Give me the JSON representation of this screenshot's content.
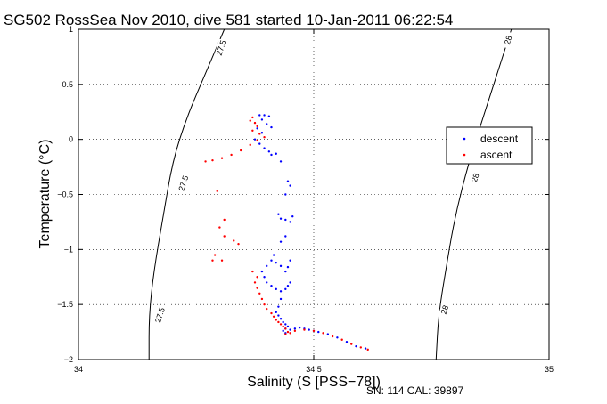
{
  "chart_data": {
    "type": "scatter",
    "title": "SG502 RossSea Nov 2010, dive 581 started 10-Jan-2011 06:22:54",
    "xlabel": "Salinity (S [PSS−78])",
    "ylabel": "Temperature (°C)",
    "xlim": [
      34,
      35
    ],
    "ylim": [
      -2,
      1
    ],
    "x_ticks": [
      34,
      34.5,
      35
    ],
    "x_tick_labels": [
      "34",
      "34.5",
      "35"
    ],
    "y_ticks": [
      1,
      0.5,
      0,
      -0.5,
      -1,
      -1.5,
      -2
    ],
    "y_tick_labels": [
      "1",
      "0.5",
      "0",
      "−0.5",
      "−1",
      "−1.5",
      "−2"
    ],
    "grid": true,
    "legend_position": "right",
    "series": [
      {
        "name": "descent",
        "color": "#0000ff",
        "marker": "dot",
        "points": [
          [
            34.385,
            0.22
          ],
          [
            34.395,
            0.22
          ],
          [
            34.405,
            0.21
          ],
          [
            34.39,
            0.18
          ],
          [
            34.4,
            0.14
          ],
          [
            34.41,
            0.11
          ],
          [
            34.38,
            0.1
          ],
          [
            34.39,
            0.06
          ],
          [
            34.375,
            0.0
          ],
          [
            34.385,
            -0.04
          ],
          [
            34.395,
            -0.08
          ],
          [
            34.405,
            -0.11
          ],
          [
            34.41,
            -0.14
          ],
          [
            34.42,
            -0.13
          ],
          [
            34.43,
            -0.2
          ],
          [
            34.445,
            -0.38
          ],
          [
            34.45,
            -0.42
          ],
          [
            34.44,
            -0.5
          ],
          [
            34.425,
            -0.68
          ],
          [
            34.43,
            -0.72
          ],
          [
            34.44,
            -0.73
          ],
          [
            34.45,
            -0.75
          ],
          [
            34.455,
            -0.7
          ],
          [
            34.44,
            -0.88
          ],
          [
            34.43,
            -0.93
          ],
          [
            34.415,
            -1.05
          ],
          [
            34.41,
            -1.1
          ],
          [
            34.4,
            -1.15
          ],
          [
            34.39,
            -1.2
          ],
          [
            34.395,
            -1.25
          ],
          [
            34.4,
            -1.3
          ],
          [
            34.41,
            -1.33
          ],
          [
            34.42,
            -1.36
          ],
          [
            34.43,
            -1.38
          ],
          [
            34.44,
            -1.36
          ],
          [
            34.445,
            -1.33
          ],
          [
            34.45,
            -1.3
          ],
          [
            34.44,
            -1.2
          ],
          [
            34.43,
            -1.15
          ],
          [
            34.42,
            -1.12
          ],
          [
            34.45,
            -1.1
          ],
          [
            34.445,
            -1.16
          ],
          [
            34.43,
            -1.45
          ],
          [
            34.425,
            -1.52
          ],
          [
            34.42,
            -1.57
          ],
          [
            34.425,
            -1.6
          ],
          [
            34.43,
            -1.63
          ],
          [
            34.435,
            -1.66
          ],
          [
            34.44,
            -1.68
          ],
          [
            34.445,
            -1.7
          ],
          [
            34.44,
            -1.72
          ],
          [
            34.435,
            -1.74
          ],
          [
            34.44,
            -1.76
          ],
          [
            34.45,
            -1.73
          ],
          [
            34.46,
            -1.72
          ],
          [
            34.47,
            -1.71
          ],
          [
            34.48,
            -1.72
          ],
          [
            34.49,
            -1.73
          ],
          [
            34.5,
            -1.74
          ],
          [
            34.51,
            -1.75
          ],
          [
            34.53,
            -1.77
          ],
          [
            34.55,
            -1.8
          ],
          [
            34.57,
            -1.84
          ],
          [
            34.59,
            -1.88
          ],
          [
            34.61,
            -1.9
          ]
        ]
      },
      {
        "name": "ascent",
        "color": "#ff0000",
        "marker": "dot",
        "points": [
          [
            34.37,
            0.2
          ],
          [
            34.365,
            0.17
          ],
          [
            34.375,
            0.15
          ],
          [
            34.38,
            0.12
          ],
          [
            34.37,
            0.08
          ],
          [
            34.385,
            0.05
          ],
          [
            34.395,
            0.02
          ],
          [
            34.38,
            -0.01
          ],
          [
            34.365,
            -0.05
          ],
          [
            34.345,
            -0.1
          ],
          [
            34.325,
            -0.14
          ],
          [
            34.305,
            -0.17
          ],
          [
            34.285,
            -0.19
          ],
          [
            34.27,
            -0.2
          ],
          [
            34.295,
            -0.47
          ],
          [
            34.31,
            -0.73
          ],
          [
            34.3,
            -0.8
          ],
          [
            34.31,
            -0.88
          ],
          [
            34.33,
            -0.92
          ],
          [
            34.34,
            -0.95
          ],
          [
            34.29,
            -1.05
          ],
          [
            34.285,
            -1.1
          ],
          [
            34.305,
            -1.1
          ],
          [
            34.37,
            -1.2
          ],
          [
            34.38,
            -1.25
          ],
          [
            34.375,
            -1.3
          ],
          [
            34.38,
            -1.35
          ],
          [
            34.385,
            -1.4
          ],
          [
            34.39,
            -1.45
          ],
          [
            34.395,
            -1.5
          ],
          [
            34.4,
            -1.54
          ],
          [
            34.41,
            -1.58
          ],
          [
            34.415,
            -1.61
          ],
          [
            34.42,
            -1.64
          ],
          [
            34.425,
            -1.66
          ],
          [
            34.43,
            -1.68
          ],
          [
            34.435,
            -1.7
          ],
          [
            34.44,
            -1.72
          ],
          [
            34.445,
            -1.75
          ],
          [
            34.44,
            -1.77
          ],
          [
            34.45,
            -1.76
          ],
          [
            34.46,
            -1.74
          ],
          [
            34.48,
            -1.73
          ],
          [
            34.5,
            -1.74
          ],
          [
            34.52,
            -1.76
          ],
          [
            34.54,
            -1.79
          ],
          [
            34.56,
            -1.82
          ],
          [
            34.58,
            -1.86
          ],
          [
            34.6,
            -1.89
          ],
          [
            34.615,
            -1.91
          ]
        ]
      }
    ],
    "density_contours": [
      {
        "label": "27.5",
        "points": [
          [
            34.31,
            1.0
          ],
          [
            34.27,
            0.6
          ],
          [
            34.23,
            0.2
          ],
          [
            34.2,
            -0.2
          ],
          [
            34.18,
            -0.7
          ],
          [
            34.16,
            -1.2
          ],
          [
            34.15,
            -1.6
          ],
          [
            34.15,
            -2.0
          ]
        ],
        "label_positions": [
          [
            34.305,
            0.83
          ],
          [
            34.225,
            -0.4
          ],
          [
            34.175,
            -1.6
          ]
        ]
      },
      {
        "label": "28",
        "points": [
          [
            34.92,
            1.0
          ],
          [
            34.89,
            0.6
          ],
          [
            34.86,
            0.2
          ],
          [
            34.83,
            -0.2
          ],
          [
            34.8,
            -0.7
          ],
          [
            34.78,
            -1.2
          ],
          [
            34.765,
            -1.6
          ],
          [
            34.76,
            -2.0
          ]
        ],
        "label_positions": [
          [
            34.915,
            0.9
          ],
          [
            34.845,
            -0.35
          ],
          [
            34.78,
            -1.55
          ]
        ]
      }
    ],
    "footer_text": "SN: 114  CAL: 39897"
  }
}
